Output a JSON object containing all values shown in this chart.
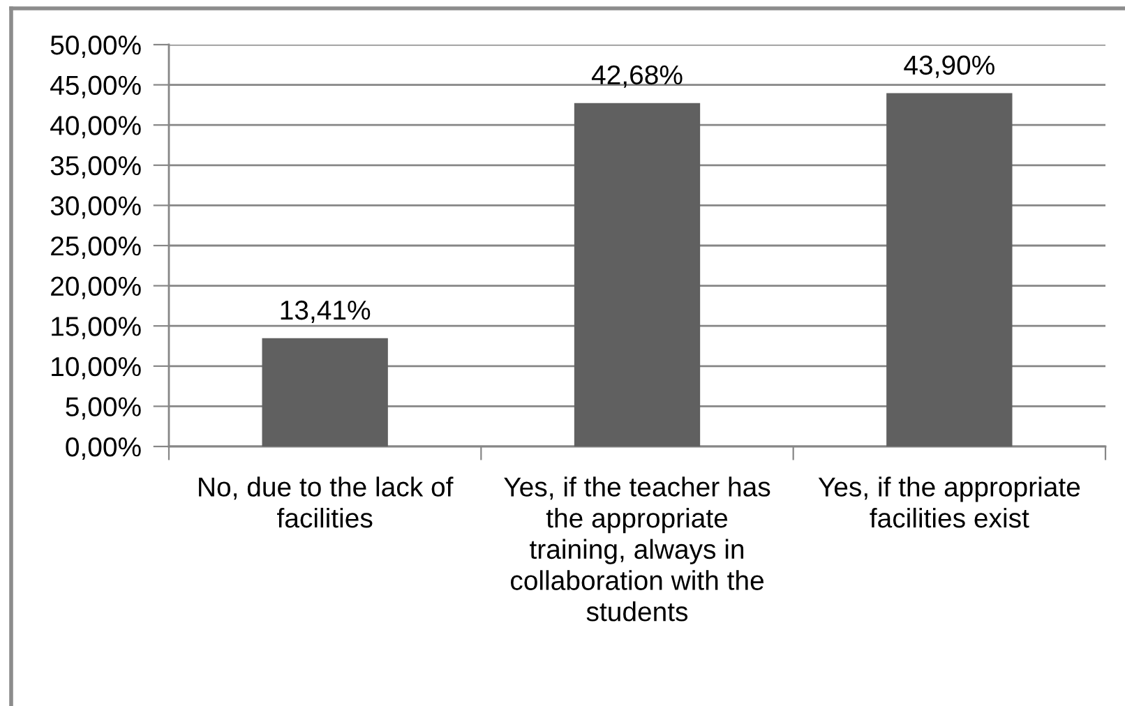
{
  "chart_data": {
    "type": "bar",
    "categories": [
      "No, due to the lack of facilities",
      "Yes, if the teacher has the appropriate training, always in collaboration with the students",
      "Yes, if the appropriate facilities exist"
    ],
    "values": [
      13.41,
      42.68,
      43.9
    ],
    "color": "#606060",
    "value_labels": [
      "13,41%",
      "42,68%",
      "43,90%"
    ],
    "ylim": [
      0,
      50
    ],
    "yticks": [
      {
        "value": 0,
        "label": "0,00%"
      },
      {
        "value": 5,
        "label": "5,00%"
      },
      {
        "value": 10,
        "label": "10,00%"
      },
      {
        "value": 15,
        "label": "15,00%"
      },
      {
        "value": 20,
        "label": "20,00%"
      },
      {
        "value": 25,
        "label": "25,00%"
      },
      {
        "value": 30,
        "label": "30,00%"
      },
      {
        "value": 35,
        "label": "35,00%"
      },
      {
        "value": 40,
        "label": "40,00%"
      },
      {
        "value": 45,
        "label": "45,00%"
      },
      {
        "value": 50,
        "label": "50,00%"
      }
    ],
    "grid": "y"
  }
}
